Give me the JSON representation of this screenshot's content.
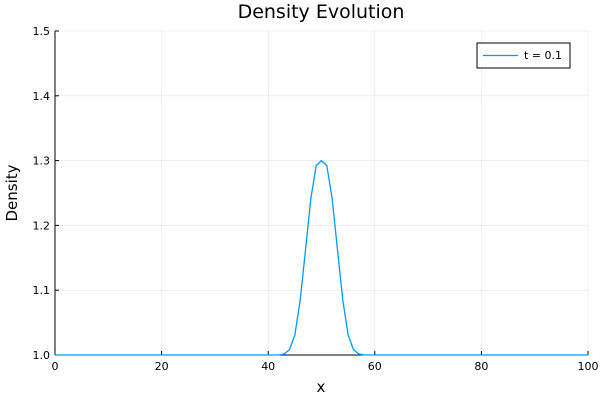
{
  "chart_data": {
    "type": "line",
    "title": "Density Evolution",
    "xlabel": "x",
    "ylabel": "Density",
    "xlim": [
      0,
      100
    ],
    "ylim": [
      1.0,
      1.5
    ],
    "xticks": [
      0,
      20,
      40,
      60,
      80,
      100
    ],
    "yticks": [
      1.0,
      1.1,
      1.2,
      1.3,
      1.4,
      1.5
    ],
    "xtick_labels": [
      "0",
      "20",
      "40",
      "60",
      "80",
      "100"
    ],
    "ytick_labels": [
      "1.0",
      "1.1",
      "1.2",
      "1.3",
      "1.4",
      "1.5"
    ],
    "grid": true,
    "legend": {
      "position": "top-right"
    },
    "series": [
      {
        "name": "t = 0.1",
        "color": "#009AFA",
        "x": [
          0,
          10,
          20,
          30,
          38,
          40,
          41,
          42,
          43,
          44,
          45,
          46,
          47,
          48,
          49,
          50,
          51,
          52,
          53,
          54,
          55,
          56,
          57,
          58,
          59,
          60,
          62,
          70,
          80,
          90,
          100
        ],
        "y": [
          1.0,
          1.0,
          1.0,
          1.0,
          1.0,
          1.0,
          1.0,
          1.0002,
          1.0016,
          1.0083,
          1.0308,
          1.0845,
          1.1623,
          1.2412,
          1.2922,
          1.3,
          1.2922,
          1.2412,
          1.1623,
          1.0845,
          1.0308,
          1.0083,
          1.0016,
          1.0002,
          1.0,
          1.0,
          1.0,
          1.0,
          1.0,
          1.0,
          1.0
        ]
      }
    ]
  }
}
